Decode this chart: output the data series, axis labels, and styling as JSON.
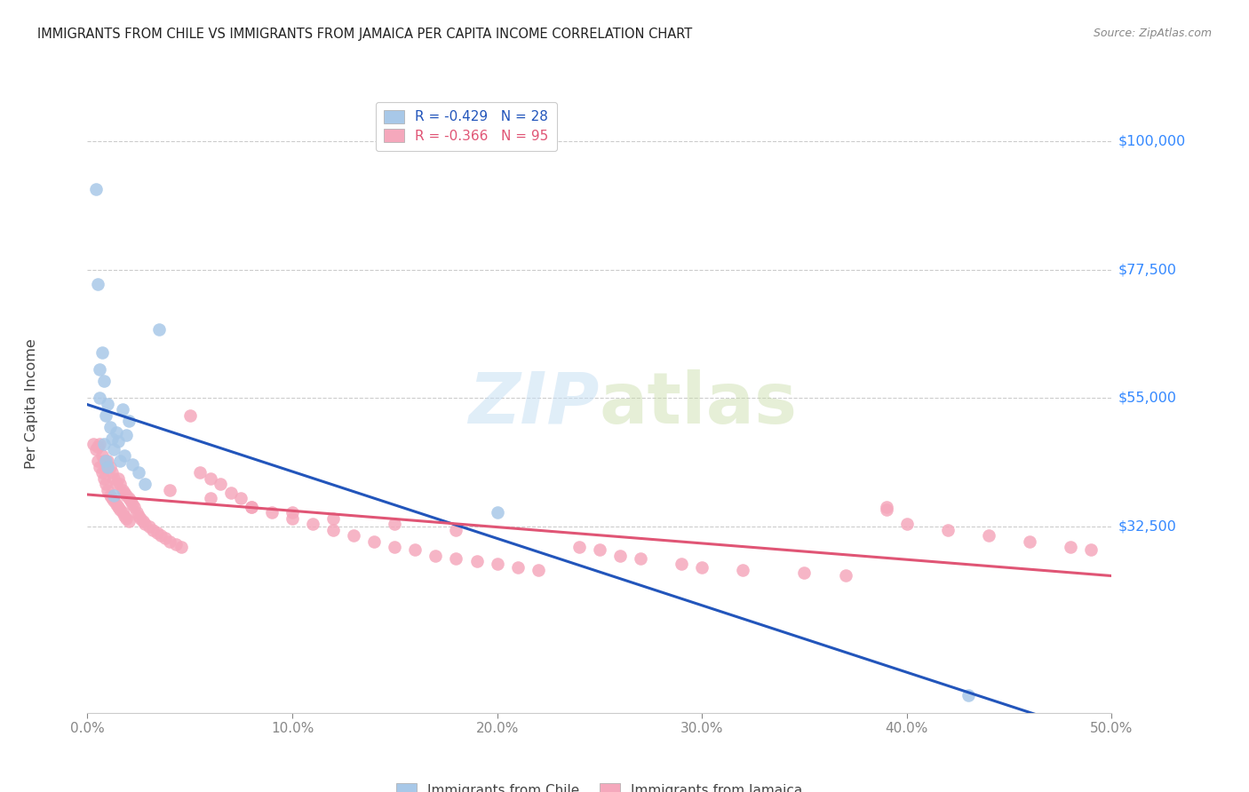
{
  "title": "IMMIGRANTS FROM CHILE VS IMMIGRANTS FROM JAMAICA PER CAPITA INCOME CORRELATION CHART",
  "source": "Source: ZipAtlas.com",
  "ylabel": "Per Capita Income",
  "ytick_labels": [
    "$100,000",
    "$77,500",
    "$55,000",
    "$32,500"
  ],
  "ytick_vals": [
    100000,
    77500,
    55000,
    32500
  ],
  "ylim": [
    0,
    108000
  ],
  "xlim": [
    0.0,
    0.5
  ],
  "xtick_vals": [
    0.0,
    0.1,
    0.2,
    0.3,
    0.4,
    0.5
  ],
  "xtick_labels": [
    "0.0%",
    "10.0%",
    "20.0%",
    "30.0%",
    "40.0%",
    "50.0%"
  ],
  "chile_R": "-0.429",
  "chile_N": "28",
  "jamaica_R": "-0.366",
  "jamaica_N": "95",
  "chile_color": "#a8c8e8",
  "jamaica_color": "#f5a8bc",
  "chile_line_color": "#2255bb",
  "jamaica_line_color": "#e05575",
  "grid_color": "#cccccc",
  "background_color": "#ffffff",
  "watermark_zip": "ZIP",
  "watermark_atlas": "atlas",
  "chile_x": [
    0.004,
    0.005,
    0.006,
    0.007,
    0.008,
    0.008,
    0.009,
    0.01,
    0.01,
    0.011,
    0.012,
    0.013,
    0.014,
    0.015,
    0.016,
    0.017,
    0.018,
    0.019,
    0.02,
    0.022,
    0.025,
    0.028,
    0.035,
    0.2,
    0.43,
    0.006,
    0.009,
    0.013
  ],
  "chile_y": [
    91500,
    75000,
    55000,
    63000,
    58000,
    47000,
    52000,
    54000,
    43000,
    50000,
    48000,
    46000,
    49000,
    47500,
    44000,
    53000,
    45000,
    48500,
    51000,
    43500,
    42000,
    40000,
    67000,
    35000,
    3000,
    60000,
    44000,
    38000
  ],
  "jamaica_x": [
    0.003,
    0.004,
    0.005,
    0.005,
    0.006,
    0.006,
    0.007,
    0.007,
    0.008,
    0.008,
    0.009,
    0.009,
    0.01,
    0.01,
    0.011,
    0.011,
    0.012,
    0.012,
    0.013,
    0.013,
    0.014,
    0.014,
    0.015,
    0.015,
    0.016,
    0.016,
    0.017,
    0.017,
    0.018,
    0.018,
    0.019,
    0.019,
    0.02,
    0.02,
    0.021,
    0.022,
    0.023,
    0.024,
    0.025,
    0.026,
    0.027,
    0.028,
    0.03,
    0.032,
    0.034,
    0.036,
    0.038,
    0.04,
    0.043,
    0.046,
    0.05,
    0.055,
    0.06,
    0.065,
    0.07,
    0.075,
    0.08,
    0.09,
    0.1,
    0.11,
    0.12,
    0.13,
    0.14,
    0.15,
    0.16,
    0.17,
    0.18,
    0.19,
    0.2,
    0.21,
    0.22,
    0.24,
    0.25,
    0.26,
    0.27,
    0.29,
    0.3,
    0.32,
    0.35,
    0.37,
    0.39,
    0.4,
    0.42,
    0.44,
    0.46,
    0.48,
    0.49,
    0.04,
    0.06,
    0.08,
    0.1,
    0.12,
    0.15,
    0.18,
    0.39
  ],
  "jamaica_y": [
    47000,
    46000,
    46500,
    44000,
    47000,
    43000,
    45000,
    42000,
    44000,
    41000,
    43000,
    40000,
    44000,
    39000,
    43000,
    38000,
    42000,
    37500,
    41000,
    37000,
    40000,
    36500,
    41000,
    36000,
    40000,
    35500,
    39000,
    35000,
    38500,
    34500,
    38000,
    34000,
    37500,
    33500,
    37000,
    36500,
    36000,
    35000,
    34500,
    34000,
    33500,
    33000,
    32500,
    32000,
    31500,
    31000,
    30500,
    30000,
    29500,
    29000,
    52000,
    42000,
    41000,
    40000,
    38500,
    37500,
    36000,
    35000,
    34000,
    33000,
    32000,
    31000,
    30000,
    29000,
    28500,
    27500,
    27000,
    26500,
    26000,
    25500,
    25000,
    29000,
    28500,
    27500,
    27000,
    26000,
    25500,
    25000,
    24500,
    24000,
    36000,
    33000,
    32000,
    31000,
    30000,
    29000,
    28500,
    39000,
    37500,
    36000,
    35000,
    34000,
    33000,
    32000,
    35500
  ]
}
